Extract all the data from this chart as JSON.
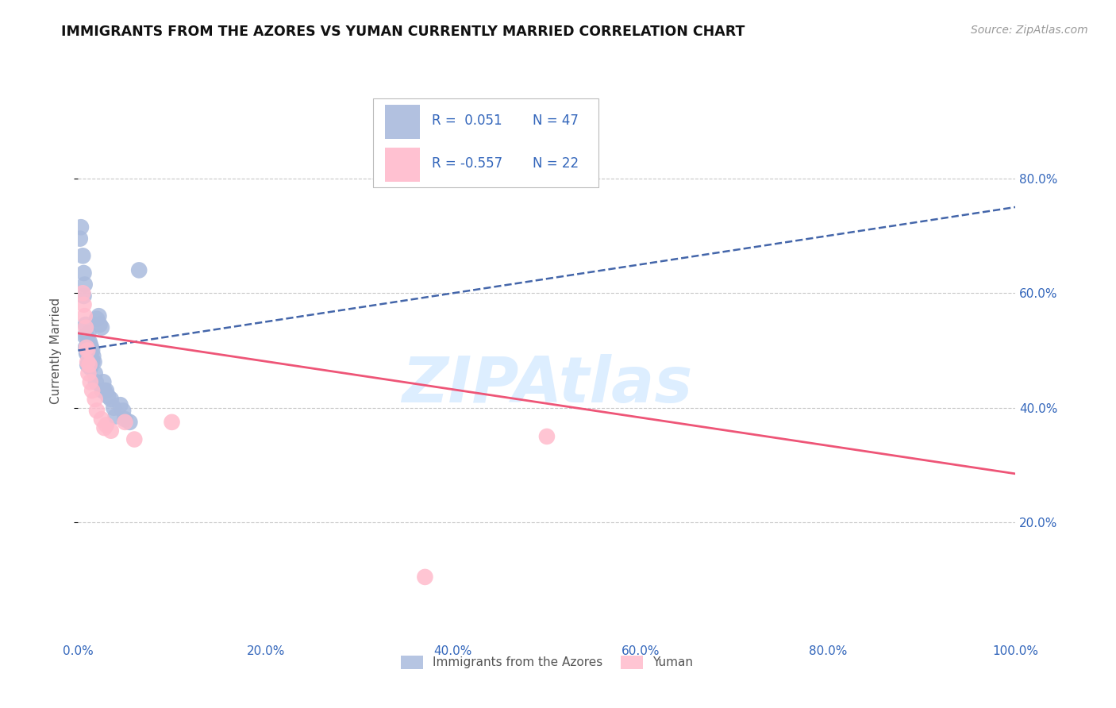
{
  "title": "IMMIGRANTS FROM THE AZORES VS YUMAN CURRENTLY MARRIED CORRELATION CHART",
  "source_text": "Source: ZipAtlas.com",
  "ylabel": "Currently Married",
  "xlim": [
    0.0,
    1.0
  ],
  "ylim": [
    0.0,
    1.0
  ],
  "xticks": [
    0.0,
    0.2,
    0.4,
    0.6,
    0.8,
    1.0
  ],
  "xtick_labels": [
    "0.0%",
    "20.0%",
    "40.0%",
    "60.0%",
    "80.0%",
    "100.0%"
  ],
  "yticks": [
    0.2,
    0.4,
    0.6,
    0.8
  ],
  "ytick_labels": [
    "20.0%",
    "40.0%",
    "60.0%",
    "80.0%"
  ],
  "grid_color": "#c8c8c8",
  "background_color": "#ffffff",
  "blue_color": "#aabbdd",
  "pink_color": "#ffbbcc",
  "blue_line_color": "#4466aa",
  "pink_line_color": "#ee5577",
  "title_color": "#111111",
  "axis_label_color": "#555555",
  "ytick_color": "#3366bb",
  "xtick_color": "#3366bb",
  "legend_r_color": "#3366bb",
  "legend_n_color": "#3366bb",
  "watermark_color": "#ddeeff",
  "blue_scatter": [
    [
      0.002,
      0.695
    ],
    [
      0.003,
      0.715
    ],
    [
      0.005,
      0.665
    ],
    [
      0.006,
      0.635
    ],
    [
      0.006,
      0.595
    ],
    [
      0.007,
      0.615
    ],
    [
      0.007,
      0.525
    ],
    [
      0.008,
      0.545
    ],
    [
      0.008,
      0.505
    ],
    [
      0.009,
      0.525
    ],
    [
      0.009,
      0.495
    ],
    [
      0.01,
      0.51
    ],
    [
      0.01,
      0.495
    ],
    [
      0.01,
      0.475
    ],
    [
      0.011,
      0.53
    ],
    [
      0.011,
      0.51
    ],
    [
      0.011,
      0.49
    ],
    [
      0.012,
      0.515
    ],
    [
      0.012,
      0.495
    ],
    [
      0.013,
      0.51
    ],
    [
      0.013,
      0.49
    ],
    [
      0.013,
      0.47
    ],
    [
      0.014,
      0.505
    ],
    [
      0.014,
      0.485
    ],
    [
      0.015,
      0.5
    ],
    [
      0.015,
      0.48
    ],
    [
      0.016,
      0.49
    ],
    [
      0.017,
      0.48
    ],
    [
      0.018,
      0.46
    ],
    [
      0.019,
      0.445
    ],
    [
      0.02,
      0.555
    ],
    [
      0.022,
      0.56
    ],
    [
      0.023,
      0.545
    ],
    [
      0.025,
      0.54
    ],
    [
      0.026,
      0.43
    ],
    [
      0.027,
      0.445
    ],
    [
      0.028,
      0.43
    ],
    [
      0.03,
      0.43
    ],
    [
      0.032,
      0.42
    ],
    [
      0.035,
      0.415
    ],
    [
      0.038,
      0.4
    ],
    [
      0.04,
      0.385
    ],
    [
      0.045,
      0.405
    ],
    [
      0.048,
      0.395
    ],
    [
      0.05,
      0.38
    ],
    [
      0.055,
      0.375
    ],
    [
      0.065,
      0.64
    ]
  ],
  "pink_scatter": [
    [
      0.005,
      0.6
    ],
    [
      0.006,
      0.58
    ],
    [
      0.007,
      0.56
    ],
    [
      0.008,
      0.54
    ],
    [
      0.009,
      0.505
    ],
    [
      0.01,
      0.5
    ],
    [
      0.01,
      0.48
    ],
    [
      0.011,
      0.46
    ],
    [
      0.012,
      0.475
    ],
    [
      0.013,
      0.445
    ],
    [
      0.015,
      0.43
    ],
    [
      0.018,
      0.415
    ],
    [
      0.02,
      0.395
    ],
    [
      0.025,
      0.38
    ],
    [
      0.028,
      0.365
    ],
    [
      0.03,
      0.37
    ],
    [
      0.035,
      0.36
    ],
    [
      0.05,
      0.375
    ],
    [
      0.06,
      0.345
    ],
    [
      0.1,
      0.375
    ],
    [
      0.37,
      0.105
    ],
    [
      0.5,
      0.35
    ]
  ],
  "blue_trendline": {
    "x_start": 0.0,
    "y_start": 0.5,
    "x_end": 1.0,
    "y_end": 0.75
  },
  "pink_trendline": {
    "x_start": 0.0,
    "y_start": 0.53,
    "x_end": 1.0,
    "y_end": 0.285
  },
  "legend_r1": "R =  0.051",
  "legend_n1": "N = 47",
  "legend_r2": "R = -0.557",
  "legend_n2": "N = 22"
}
